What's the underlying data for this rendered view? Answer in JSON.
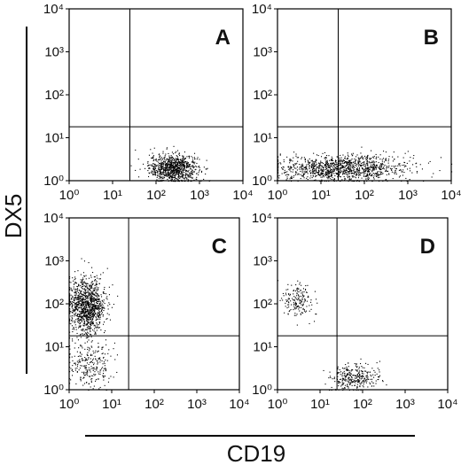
{
  "figure": {
    "ylabel": "DX5",
    "xlabel": "CD19"
  },
  "chart_data": [
    {
      "type": "scatter",
      "panel_label": "A",
      "xscale": "log",
      "yscale": "log",
      "xlim": [
        1,
        10000
      ],
      "ylim": [
        1,
        10000
      ],
      "x_ticks": [
        "10⁰",
        "10¹",
        "10²",
        "10³",
        "10⁴"
      ],
      "y_ticks": [
        "10⁰",
        "10¹",
        "10²",
        "10³",
        "10⁴"
      ],
      "gates": {
        "x": 25,
        "y": 18
      },
      "clusters": [
        {
          "name": "CD19+ DX5−",
          "x_center": 250,
          "y_center": 2,
          "x_spread_decades": 0.28,
          "y_spread_decades": 0.16,
          "count": 900
        }
      ]
    },
    {
      "type": "scatter",
      "panel_label": "B",
      "xscale": "log",
      "yscale": "log",
      "xlim": [
        1,
        10000
      ],
      "ylim": [
        1,
        10000
      ],
      "x_ticks": [
        "10⁰",
        "10¹",
        "10²",
        "10³",
        "10⁴"
      ],
      "y_ticks": [
        "10⁰",
        "10¹",
        "10²",
        "10³",
        "10⁴"
      ],
      "gates": {
        "x": 25,
        "y": 18
      },
      "clusters": [
        {
          "name": "DX5− broad",
          "x_center": 30,
          "y_center": 2,
          "x_spread_decades": 0.75,
          "y_spread_decades": 0.15,
          "count": 1200
        }
      ]
    },
    {
      "type": "scatter",
      "panel_label": "C",
      "xscale": "log",
      "yscale": "log",
      "xlim": [
        1,
        10000
      ],
      "ylim": [
        1,
        10000
      ],
      "x_ticks": [
        "10⁰",
        "10¹",
        "10²",
        "10³",
        "10⁴"
      ],
      "y_ticks": [
        "10⁰",
        "10¹",
        "10²",
        "10³",
        "10⁴"
      ],
      "gates": {
        "x": 25,
        "y": 18
      },
      "clusters": [
        {
          "name": "DX5+ CD19−",
          "x_center": 2.5,
          "y_center": 90,
          "x_spread_decades": 0.22,
          "y_spread_decades": 0.32,
          "count": 1100
        },
        {
          "name": "DX5 low CD19−",
          "x_center": 3,
          "y_center": 4,
          "x_spread_decades": 0.25,
          "y_spread_decades": 0.3,
          "count": 260
        }
      ]
    },
    {
      "type": "scatter",
      "panel_label": "D",
      "xscale": "log",
      "yscale": "log",
      "xlim": [
        1,
        10000
      ],
      "ylim": [
        1,
        10000
      ],
      "x_ticks": [
        "10⁰",
        "10¹",
        "10²",
        "10³",
        "10⁴"
      ],
      "y_ticks": [
        "10⁰",
        "10¹",
        "10²",
        "10³",
        "10⁴"
      ],
      "gates": {
        "x": 25,
        "y": 18
      },
      "clusters": [
        {
          "name": "DX5+ CD19−",
          "x_center": 3,
          "y_center": 120,
          "x_spread_decades": 0.18,
          "y_spread_decades": 0.22,
          "count": 170
        },
        {
          "name": "CD19+ DX5−",
          "x_center": 60,
          "y_center": 2,
          "x_spread_decades": 0.3,
          "y_spread_decades": 0.16,
          "count": 320
        }
      ]
    }
  ]
}
